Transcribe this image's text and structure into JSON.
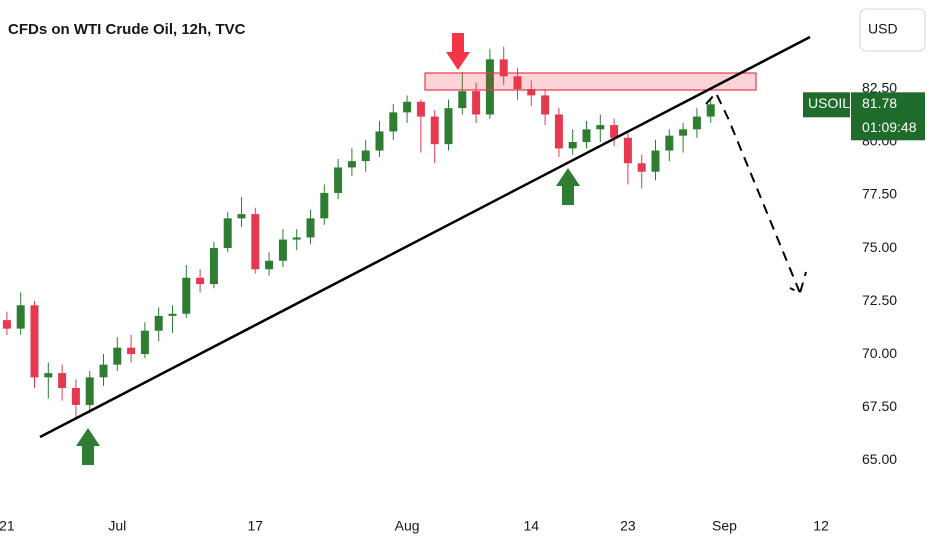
{
  "chart_data": {
    "type": "candlestick",
    "title": "CFDs on WTI Crude Oil, 12h, TVC",
    "currency": "USD",
    "up_color": "#2e7d32",
    "down_color": "#e5394f",
    "categories": [
      "21",
      null,
      null,
      null,
      null,
      null,
      null,
      null,
      "Jul",
      null,
      null,
      null,
      null,
      null,
      null,
      null,
      null,
      null,
      "17",
      null,
      null,
      null,
      null,
      null,
      null,
      null,
      null,
      null,
      null,
      "Aug",
      null,
      null,
      null,
      null,
      null,
      null,
      null,
      null,
      "14",
      null,
      null,
      null,
      null,
      null,
      null,
      "23",
      null,
      null,
      null,
      null,
      null,
      null,
      "Sep",
      null,
      null,
      null,
      null,
      null,
      null,
      "12",
      null
    ],
    "open": [
      71.6,
      71.2,
      72.3,
      68.9,
      69.1,
      68.4,
      67.6,
      68.9,
      69.5,
      70.3,
      70.0,
      71.1,
      71.8,
      71.9,
      73.6,
      73.3,
      75.0,
      76.4,
      76.6,
      74.0,
      74.4,
      75.4,
      75.5,
      76.4,
      77.6,
      78.8,
      79.1,
      79.6,
      80.5,
      81.4,
      81.9,
      81.2,
      79.9,
      81.6,
      82.4,
      81.3,
      83.9,
      83.1,
      82.5,
      82.2,
      81.3,
      79.7,
      80.0,
      80.6,
      80.8,
      80.2,
      79.0,
      78.6,
      79.6,
      80.3,
      80.6,
      81.2,
      null,
      null,
      null,
      null,
      null,
      null,
      null,
      null,
      null
    ],
    "high": [
      72.0,
      72.9,
      72.5,
      69.6,
      69.5,
      68.8,
      69.2,
      70.0,
      70.8,
      70.9,
      71.5,
      72.2,
      72.3,
      74.2,
      74.0,
      75.3,
      76.7,
      77.4,
      76.9,
      74.8,
      75.9,
      75.9,
      76.8,
      78.0,
      79.2,
      79.7,
      80.1,
      81.0,
      81.8,
      82.2,
      82.0,
      81.5,
      82.0,
      83.3,
      82.8,
      84.4,
      84.5,
      83.5,
      82.9,
      82.5,
      81.6,
      80.6,
      81.0,
      81.3,
      81.1,
      80.4,
      79.4,
      80.1,
      80.6,
      80.9,
      81.6,
      82.0,
      null,
      null,
      null,
      null,
      null,
      null,
      null,
      null,
      null
    ],
    "low": [
      70.9,
      70.9,
      68.4,
      67.9,
      67.8,
      66.9,
      67.2,
      68.5,
      69.2,
      69.6,
      69.8,
      70.6,
      71.0,
      71.7,
      72.9,
      73.1,
      74.8,
      76.0,
      73.8,
      73.7,
      74.1,
      74.9,
      75.2,
      76.1,
      77.3,
      78.4,
      78.6,
      79.3,
      80.1,
      80.9,
      79.5,
      79.0,
      79.6,
      81.3,
      80.9,
      81.1,
      82.7,
      82.0,
      81.7,
      80.8,
      79.3,
      79.4,
      79.7,
      80.0,
      79.8,
      78.0,
      77.8,
      78.2,
      79.1,
      79.5,
      80.2,
      80.9,
      null,
      null,
      null,
      null,
      null,
      null,
      null,
      null,
      null
    ],
    "close": [
      71.2,
      72.3,
      68.9,
      69.1,
      68.4,
      67.6,
      68.9,
      69.5,
      70.3,
      70.0,
      71.1,
      71.8,
      71.9,
      73.6,
      73.3,
      75.0,
      76.4,
      76.6,
      74.0,
      74.4,
      75.4,
      75.5,
      76.4,
      77.6,
      78.8,
      79.1,
      79.6,
      80.5,
      81.4,
      81.9,
      81.2,
      79.9,
      81.6,
      82.4,
      81.3,
      83.9,
      83.1,
      82.5,
      82.2,
      81.3,
      79.7,
      80.0,
      80.6,
      80.8,
      80.2,
      79.0,
      78.6,
      79.6,
      80.3,
      80.6,
      81.2,
      81.78,
      null,
      null,
      null,
      null,
      null,
      null,
      null,
      null,
      null
    ],
    "ylim": [
      62.88,
      86.7
    ],
    "yticks": [
      {
        "value": 65,
        "label": "65.00"
      },
      {
        "value": 67.5,
        "label": "67.50"
      },
      {
        "value": 70,
        "label": "70.00"
      },
      {
        "value": 72.5,
        "label": "72.50"
      },
      {
        "value": 75,
        "label": "75.00"
      },
      {
        "value": 77.5,
        "label": "77.50"
      },
      {
        "value": 80,
        "label": "80.00"
      },
      {
        "value": 82.5,
        "label": "82.50"
      }
    ],
    "grid": false,
    "price_tag": {
      "symbol": "USOIL",
      "value": 81.78,
      "countdown": "01:09:48",
      "color": "#1e6b2c"
    }
  }
}
